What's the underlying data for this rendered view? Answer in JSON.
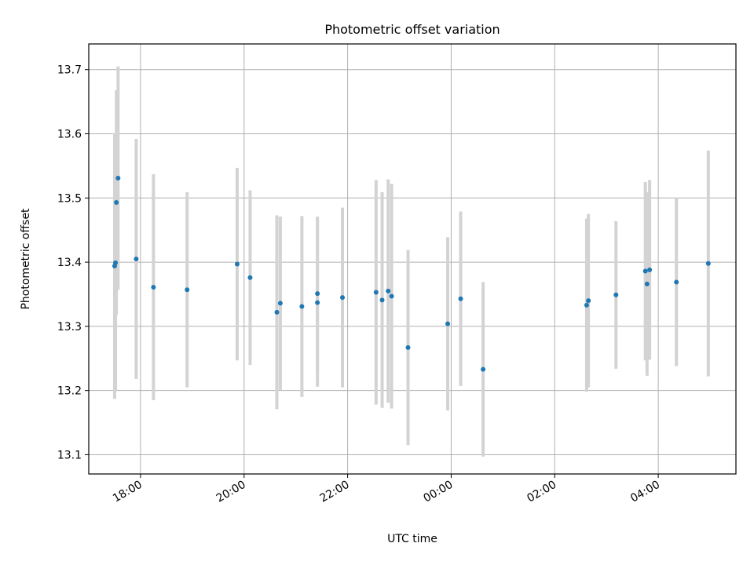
{
  "chart_data": {
    "type": "scatter",
    "title": "Photometric offset variation",
    "xlabel": "UTC time",
    "ylabel": "Photometric offset",
    "x_axis": "time",
    "xlim": [
      "17:00",
      "05:30"
    ],
    "ylim": [
      13.07,
      13.74
    ],
    "x_ticks": [
      "18:00",
      "20:00",
      "22:00",
      "00:00",
      "02:00",
      "04:00"
    ],
    "y_ticks": [
      13.1,
      13.2,
      13.3,
      13.4,
      13.5,
      13.6,
      13.7
    ],
    "grid": true,
    "point_color": "#1f77b4",
    "errorbar_color": "#d3d3d3",
    "points": [
      {
        "x": "17:30",
        "y": 13.394,
        "err": 0.207
      },
      {
        "x": "17:31",
        "y": 13.399,
        "err": 0.199
      },
      {
        "x": "17:32",
        "y": 13.493,
        "err": 0.175
      },
      {
        "x": "17:34",
        "y": 13.531,
        "err": 0.174
      },
      {
        "x": "17:55",
        "y": 13.405,
        "err": 0.187
      },
      {
        "x": "18:15",
        "y": 13.361,
        "err": 0.176
      },
      {
        "x": "18:54",
        "y": 13.357,
        "err": 0.152
      },
      {
        "x": "19:52",
        "y": 13.397,
        "err": 0.15
      },
      {
        "x": "20:07",
        "y": 13.376,
        "err": 0.136
      },
      {
        "x": "20:38",
        "y": 13.322,
        "err": 0.151
      },
      {
        "x": "20:42",
        "y": 13.336,
        "err": 0.135
      },
      {
        "x": "21:07",
        "y": 13.331,
        "err": 0.141
      },
      {
        "x": "21:25",
        "y": 13.337,
        "err": 0.131
      },
      {
        "x": "21:25",
        "y": 13.351,
        "err": 0.12
      },
      {
        "x": "21:54",
        "y": 13.345,
        "err": 0.14
      },
      {
        "x": "22:33",
        "y": 13.353,
        "err": 0.175
      },
      {
        "x": "22:40",
        "y": 13.341,
        "err": 0.168
      },
      {
        "x": "22:47",
        "y": 13.355,
        "err": 0.174
      },
      {
        "x": "22:51",
        "y": 13.347,
        "err": 0.175
      },
      {
        "x": "23:10",
        "y": 13.267,
        "err": 0.152
      },
      {
        "x": "23:56",
        "y": 13.304,
        "err": 0.135
      },
      {
        "x": "00:11",
        "y": 13.343,
        "err": 0.136
      },
      {
        "x": "00:37",
        "y": 13.233,
        "err": 0.136
      },
      {
        "x": "02:37",
        "y": 13.333,
        "err": 0.135
      },
      {
        "x": "02:39",
        "y": 13.34,
        "err": 0.135
      },
      {
        "x": "03:11",
        "y": 13.349,
        "err": 0.115
      },
      {
        "x": "03:45",
        "y": 13.386,
        "err": 0.139
      },
      {
        "x": "03:47",
        "y": 13.366,
        "err": 0.143
      },
      {
        "x": "03:50",
        "y": 13.388,
        "err": 0.14
      },
      {
        "x": "04:21",
        "y": 13.369,
        "err": 0.131
      },
      {
        "x": "04:58",
        "y": 13.398,
        "err": 0.176
      }
    ]
  }
}
